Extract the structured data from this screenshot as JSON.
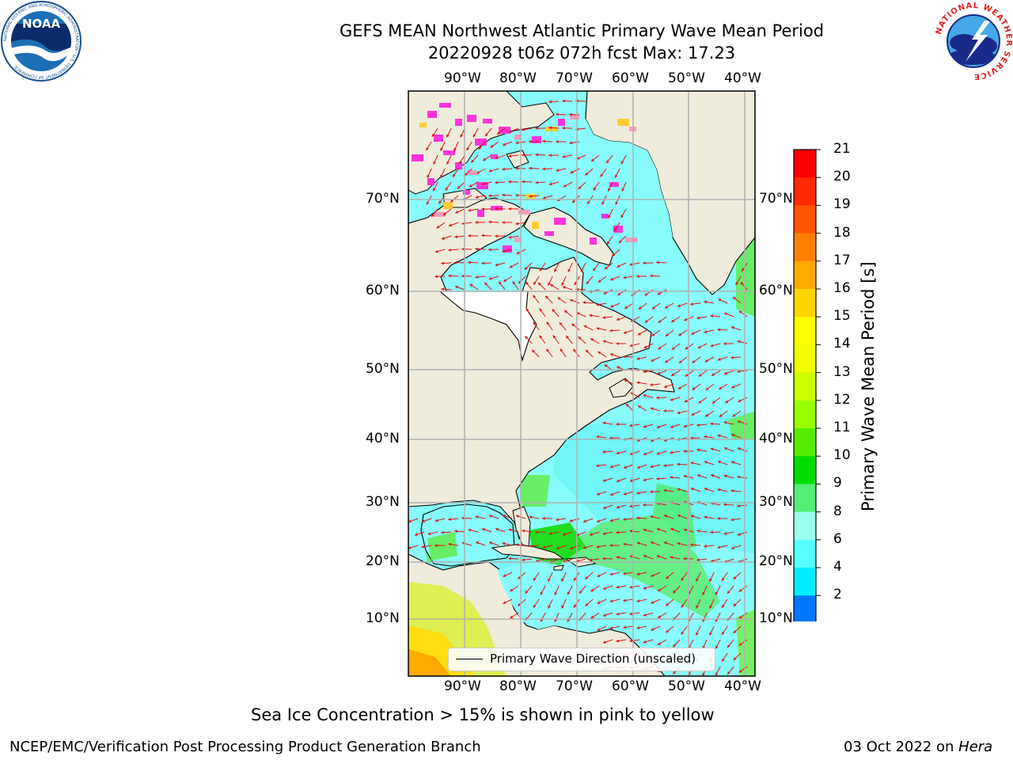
{
  "title": {
    "line1": "GEFS MEAN Northwest Atlantic Primary Wave Mean Period",
    "line2": "20220928 t06z 072h fcst   Max: 17.23"
  },
  "map": {
    "lon_labels": [
      "90°W",
      "80°W",
      "70°W",
      "60°W",
      "50°W",
      "40°W"
    ],
    "lat_labels": [
      "70°N",
      "60°N",
      "50°N",
      "40°N",
      "30°N",
      "20°N",
      "10°N"
    ],
    "legend_label": "Primary Wave Direction (unscaled)",
    "land_color": "#efecdc",
    "grid_color": "#b0b0b0",
    "arrow_color": "#e01010",
    "ice_colors": [
      "#ff33dd",
      "#ff99bb",
      "#ffcc33"
    ]
  },
  "colorbar": {
    "label": "Primary Wave Mean Period [s]",
    "ticks": [
      "21",
      "20",
      "19",
      "18",
      "17",
      "16",
      "15",
      "14",
      "13",
      "12",
      "11",
      "10",
      "9",
      "8",
      "6",
      "4",
      "2"
    ],
    "colors": [
      "#ff0000",
      "#ff2a00",
      "#ff5500",
      "#ff8000",
      "#ffaa00",
      "#ffd400",
      "#ffff00",
      "#eeff00",
      "#ccff00",
      "#99ff00",
      "#55ee00",
      "#00dd00",
      "#55ee77",
      "#99ffee",
      "#55ffff",
      "#00eeff",
      "#0077ff"
    ],
    "extend_color": "#0000ee"
  },
  "note": "Sea Ice Concentration > 15% is shown in pink to yellow",
  "footer": {
    "left": "NCEP/EMC/Verification Post Processing Product Generation Branch",
    "right_date": "03 Oct 2022 on ",
    "right_machine": "Hera"
  },
  "logos": {
    "noaa_text": "NOAA",
    "noaa_ring": "NATIONAL OCEANIC AND ATMOSPHERIC ADMINISTRATION · U.S. DEPARTMENT OF COMMERCE",
    "nws_ring": "NATIONAL WEATHER SERVICE"
  }
}
